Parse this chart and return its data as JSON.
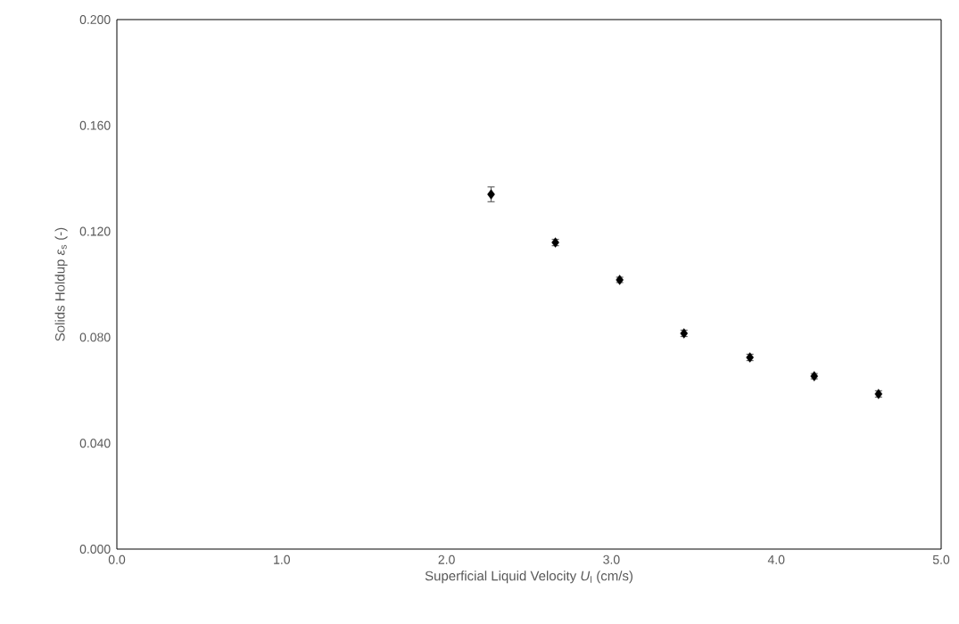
{
  "chart_data": {
    "type": "scatter",
    "xlabel": "Superficial Liquid Velocity *U*$_{l}$ (cm/s)",
    "ylabel": "Solids Holdup *ε*$_{s}$ (-)",
    "x": [
      2.27,
      2.66,
      3.05,
      3.44,
      3.84,
      4.23,
      4.62
    ],
    "series": [
      {
        "color": "#000000",
        "values": [
          0.134,
          0.1158,
          0.1017,
          0.0815,
          0.0724,
          0.0653,
          0.0586
        ],
        "errors": [
          0.0028,
          0.0012,
          0.001,
          0.0012,
          0.0012,
          0.001,
          0.0012
        ]
      }
    ],
    "marker": "diamond",
    "grid": false,
    "xlim": [
      0,
      5
    ],
    "ylim": [
      0,
      0.2
    ],
    "xticks": [
      {
        "value": 0,
        "label": "0.0"
      },
      {
        "value": 1,
        "label": "1.0"
      },
      {
        "value": 2,
        "label": "2.0"
      },
      {
        "value": 3,
        "label": "3.0"
      },
      {
        "value": 4,
        "label": "4.0"
      },
      {
        "value": 5,
        "label": "5.0"
      }
    ],
    "yticks": [
      {
        "value": 0,
        "label": "0.000"
      },
      {
        "value": 0.04,
        "label": "0.040"
      },
      {
        "value": 0.08,
        "label": "0.080"
      },
      {
        "value": 0.12,
        "label": "0.120"
      },
      {
        "value": 0.16,
        "label": "0.160"
      },
      {
        "value": 0.2,
        "label": "0.200"
      }
    ]
  }
}
